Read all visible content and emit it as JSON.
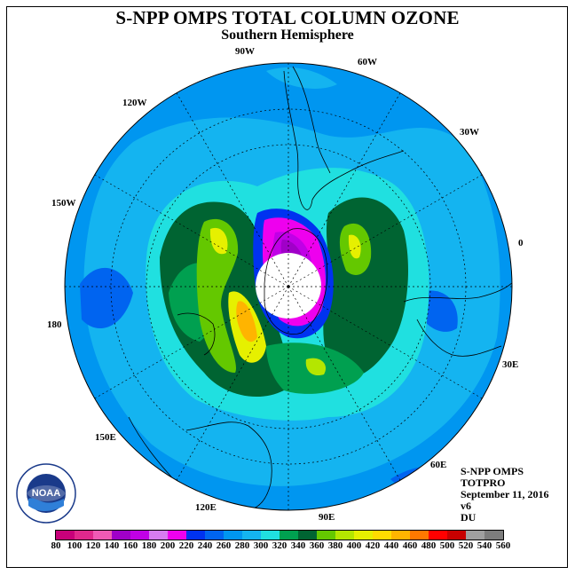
{
  "title": "S-NPP OMPS TOTAL COLUMN OZONE",
  "subtitle": "Southern Hemisphere",
  "longitude_labels": [
    "90W",
    "60W",
    "30W",
    "0",
    "30E",
    "60E",
    "90E",
    "120E",
    "150E",
    "180",
    "150W",
    "120W"
  ],
  "info": {
    "instrument": "S-NPP OMPS",
    "product": "TOTPRO",
    "date": "September 11, 2016",
    "version": "v6",
    "units": "DU"
  },
  "logo_text": "NOAA",
  "colorbar": {
    "ticks": [
      "80",
      "100",
      "120",
      "140",
      "160",
      "180",
      "200",
      "220",
      "240",
      "260",
      "280",
      "300",
      "320",
      "340",
      "360",
      "380",
      "400",
      "420",
      "440",
      "460",
      "480",
      "500",
      "520",
      "540",
      "560"
    ],
    "colors": [
      "#c8007a",
      "#e0288c",
      "#f05ab4",
      "#a000c8",
      "#c000e6",
      "#d77cf0",
      "#ee00ee",
      "#0032f0",
      "#0064f0",
      "#0096f0",
      "#14b4f0",
      "#20e0e0",
      "#00a050",
      "#006432",
      "#64c800",
      "#b4e600",
      "#e6f000",
      "#ffdc00",
      "#ffb400",
      "#ff7800",
      "#ff0000",
      "#c80000",
      "#a0a0a0",
      "#7d7d7d"
    ]
  }
}
